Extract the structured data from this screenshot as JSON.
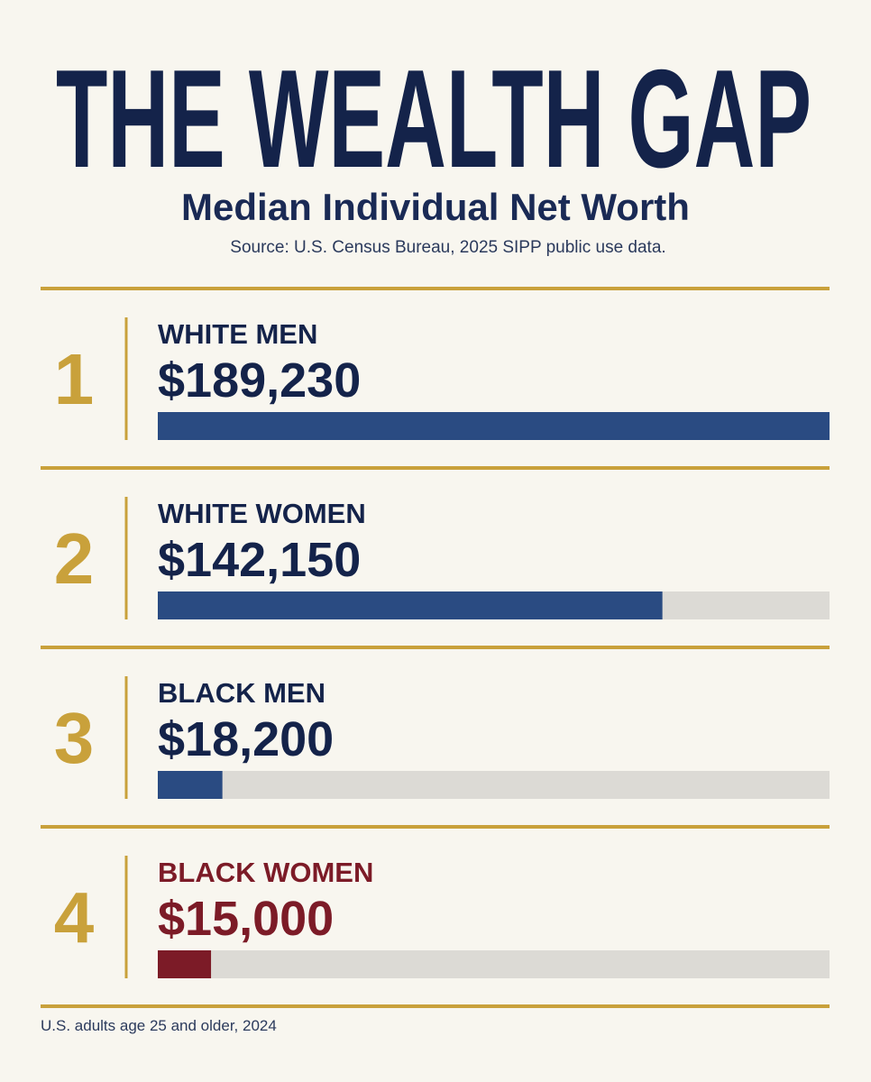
{
  "chart_data": {
    "type": "bar",
    "title": "THE WEALTH GAP",
    "subtitle": "Median Individual Net Worth",
    "source": "Source: U.S. Census Bureau, 2025 SIPP public use data.",
    "note": "U.S. adults age 25 and older, 2024",
    "ranks": [
      "1",
      "2",
      "3",
      "4"
    ],
    "categories": [
      "WHITE MEN",
      "WHITE WOMEN",
      "BLACK MEN",
      "BLACK WOMEN"
    ],
    "values": [
      189230,
      142150,
      18200,
      15000
    ],
    "value_labels": [
      "$189,230",
      "$142,150",
      "$18,200",
      "$15,000"
    ],
    "colors": [
      "#2a4b82",
      "#2a4b82",
      "#2a4b82",
      "#7c1b27"
    ],
    "label_colors": [
      "#14234a",
      "#14234a",
      "#14234a",
      "#7c1b27"
    ],
    "xlim": [
      0,
      189230
    ]
  }
}
